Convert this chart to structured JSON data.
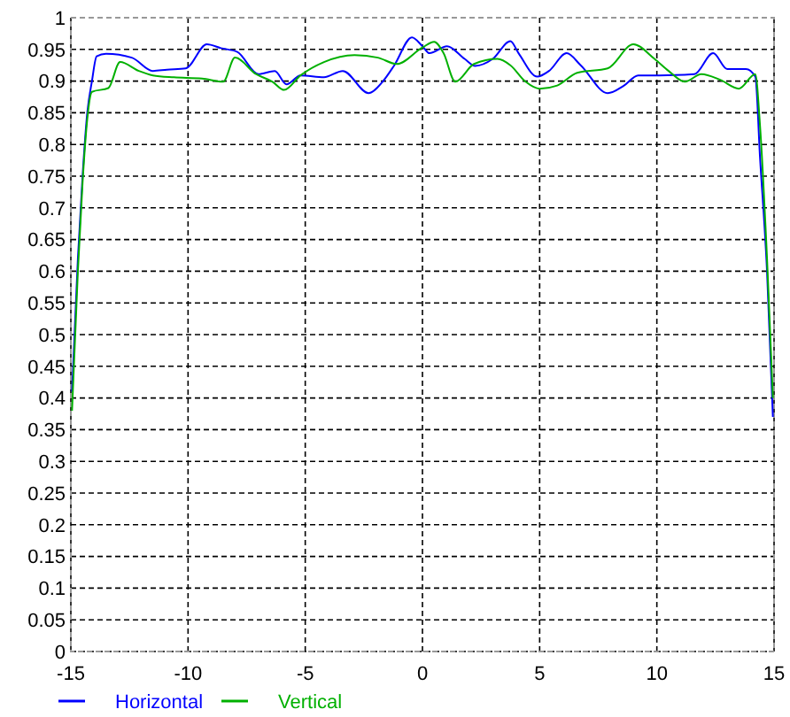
{
  "chart_data": {
    "type": "line",
    "xlim": [
      -15,
      15
    ],
    "ylim": [
      0,
      1
    ],
    "xticks": [
      -15,
      -10,
      -5,
      0,
      5,
      10,
      15
    ],
    "yticks": [
      0,
      0.05,
      0.1,
      0.15,
      0.2,
      0.25,
      0.3,
      0.35,
      0.4,
      0.45,
      0.5,
      0.55,
      0.6,
      0.65,
      0.7,
      0.75,
      0.8,
      0.85,
      0.9,
      0.95,
      1
    ],
    "grid": true,
    "legend": "bottom",
    "line_style": "solid",
    "marker": "none",
    "series": [
      {
        "name": "Horizontal",
        "color": "#0000ff",
        "x": [
          -14.95,
          -14.7,
          -14.5,
          -14.3,
          -14.1,
          -13.9,
          -13.5,
          -12.4,
          -11.5,
          -10.9,
          -10.1,
          -9.2,
          -8.6,
          -7.9,
          -7,
          -6.3,
          -5.8,
          -5.2,
          -4.2,
          -3.4,
          -2.3,
          -1.7,
          -1.2,
          -0.45,
          0,
          0.3,
          1.05,
          1.8,
          2.25,
          3,
          3.75,
          4.1,
          4.9,
          5.4,
          6.15,
          6.75,
          7.9,
          8.6,
          9.2,
          10.1,
          11.6,
          12.4,
          13,
          13.8,
          14.2,
          14.4,
          14.7,
          14.95
        ],
        "values": [
          0.41,
          0.62,
          0.75,
          0.85,
          0.9,
          0.939,
          0.943,
          0.937,
          0.916,
          0.918,
          0.92,
          0.958,
          0.952,
          0.946,
          0.911,
          0.916,
          0.895,
          0.909,
          0.906,
          0.916,
          0.881,
          0.899,
          0.925,
          0.969,
          0.955,
          0.944,
          0.955,
          0.935,
          0.924,
          0.935,
          0.963,
          0.944,
          0.907,
          0.916,
          0.944,
          0.925,
          0.881,
          0.893,
          0.909,
          0.909,
          0.911,
          0.944,
          0.919,
          0.919,
          0.907,
          0.78,
          0.6,
          0.37
        ]
      },
      {
        "name": "Vertical",
        "color": "#00b000",
        "x": [
          -14.95,
          -14.7,
          -14.5,
          -14.3,
          -14.1,
          -13.4,
          -12.9,
          -12.1,
          -11.5,
          -10.6,
          -9.4,
          -8.5,
          -8,
          -7.1,
          -6.4,
          -5.9,
          -5.2,
          -4.2,
          -2.9,
          -1.9,
          -1.1,
          0,
          0.5,
          0.9,
          1.4,
          2.2,
          3.2,
          3.75,
          4.4,
          5,
          5.75,
          6.6,
          7.9,
          9,
          9.9,
          10.5,
          11.2,
          11.9,
          12.7,
          13.5,
          14.2,
          14.4,
          14.7,
          14.95
        ],
        "values": [
          0.38,
          0.6,
          0.74,
          0.84,
          0.883,
          0.889,
          0.93,
          0.916,
          0.909,
          0.906,
          0.904,
          0.899,
          0.937,
          0.911,
          0.899,
          0.886,
          0.909,
          0.93,
          0.941,
          0.937,
          0.927,
          0.953,
          0.962,
          0.944,
          0.899,
          0.927,
          0.935,
          0.925,
          0.899,
          0.888,
          0.893,
          0.913,
          0.92,
          0.958,
          0.935,
          0.916,
          0.899,
          0.911,
          0.902,
          0.888,
          0.911,
          0.83,
          0.62,
          0.4
        ]
      }
    ]
  }
}
